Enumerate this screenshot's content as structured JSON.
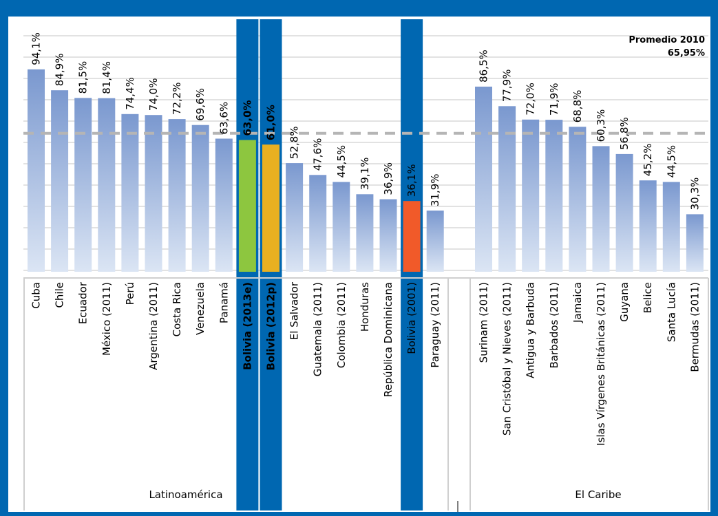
{
  "chart_data": {
    "type": "bar",
    "ylim": [
      0,
      100
    ],
    "reference_line": {
      "label": "Promedio 2010",
      "value_label": "65,95%",
      "value": 65.95
    },
    "groups": [
      {
        "label": "Latinoamérica"
      },
      {
        "label": "El Caribe"
      }
    ],
    "bars": [
      {
        "category": "Cuba",
        "value": 94.1,
        "label": "94,1%",
        "group": 0
      },
      {
        "category": "Chile",
        "value": 84.9,
        "label": "84,9%",
        "group": 0
      },
      {
        "category": "Ecuador",
        "value": 81.5,
        "label": "81,5%",
        "group": 0
      },
      {
        "category": "México (2011)",
        "value": 81.4,
        "label": "81,4%",
        "group": 0
      },
      {
        "category": "Perú",
        "value": 74.4,
        "label": "74,4%",
        "group": 0
      },
      {
        "category": "Argentina (2011)",
        "value": 74.0,
        "label": "74,0%",
        "group": 0
      },
      {
        "category": "Costa Rica",
        "value": 72.2,
        "label": "72,2%",
        "group": 0
      },
      {
        "category": "Venezuela",
        "value": 69.6,
        "label": "69,6%",
        "group": 0
      },
      {
        "category": "Panamá",
        "value": 63.6,
        "label": "63,6%",
        "group": 0
      },
      {
        "category": "Bolivia (2013e)",
        "value": 63.0,
        "label": "63,0%",
        "group": 0,
        "highlight": true,
        "color": "#8dc63f"
      },
      {
        "category": "Bolivia (2012p)",
        "value": 61.0,
        "label": "61,0%",
        "group": 0,
        "highlight": true,
        "color": "#e8b021"
      },
      {
        "category": "El Salvador",
        "value": 52.8,
        "label": "52,8%",
        "group": 0
      },
      {
        "category": "Guatemala (2011)",
        "value": 47.6,
        "label": "47,6%",
        "group": 0
      },
      {
        "category": "Colombia (2011)",
        "value": 44.5,
        "label": "44,5%",
        "group": 0
      },
      {
        "category": "Honduras",
        "value": 39.1,
        "label": "39,1%",
        "group": 0
      },
      {
        "category": "República Dominicana",
        "value": 36.9,
        "label": "36,9%",
        "group": 0
      },
      {
        "category": "Bolivia (2001)",
        "value": 36.1,
        "label": "36,1%",
        "group": 0,
        "highlight": true,
        "color": "#f15a29"
      },
      {
        "category": "Paraguay (2011)",
        "value": 31.9,
        "label": "31,9%",
        "group": 0
      },
      {
        "category": "Surinam (2011)",
        "value": 86.5,
        "label": "86,5%",
        "group": 1
      },
      {
        "category": "San Cristóbal y Nieves (2011)",
        "value": 77.9,
        "label": "77,9%",
        "group": 1
      },
      {
        "category": "Antigua y Barbuda",
        "value": 72.0,
        "label": "72,0%",
        "group": 1
      },
      {
        "category": "Barbados (2011)",
        "value": 71.9,
        "label": "71,9%",
        "group": 1
      },
      {
        "category": "Jamaica",
        "value": 68.8,
        "label": "68,8%",
        "group": 1
      },
      {
        "category": "Islas Vírgenes Británicas (2011)",
        "value": 60.3,
        "label": "60,3%",
        "group": 1
      },
      {
        "category": "Guyana",
        "value": 56.8,
        "label": "56,8%",
        "group": 1
      },
      {
        "category": "Belice",
        "value": 45.2,
        "label": "45,2%",
        "group": 1
      },
      {
        "category": "Santa Lucía",
        "value": 44.5,
        "label": "44,5%",
        "group": 1
      },
      {
        "category": "Bermudas (2011)",
        "value": 30.3,
        "label": "30,3%",
        "group": 1
      }
    ],
    "colors": {
      "frame": "#0067b1",
      "highlight_band": "#0067b1",
      "bar_top": "#7a98cf",
      "bar_bottom": "#dbe5f4",
      "grid": "#d9d9d9",
      "reference_line": "#b5b5b5",
      "reference_text": "#9a9a9a"
    }
  }
}
